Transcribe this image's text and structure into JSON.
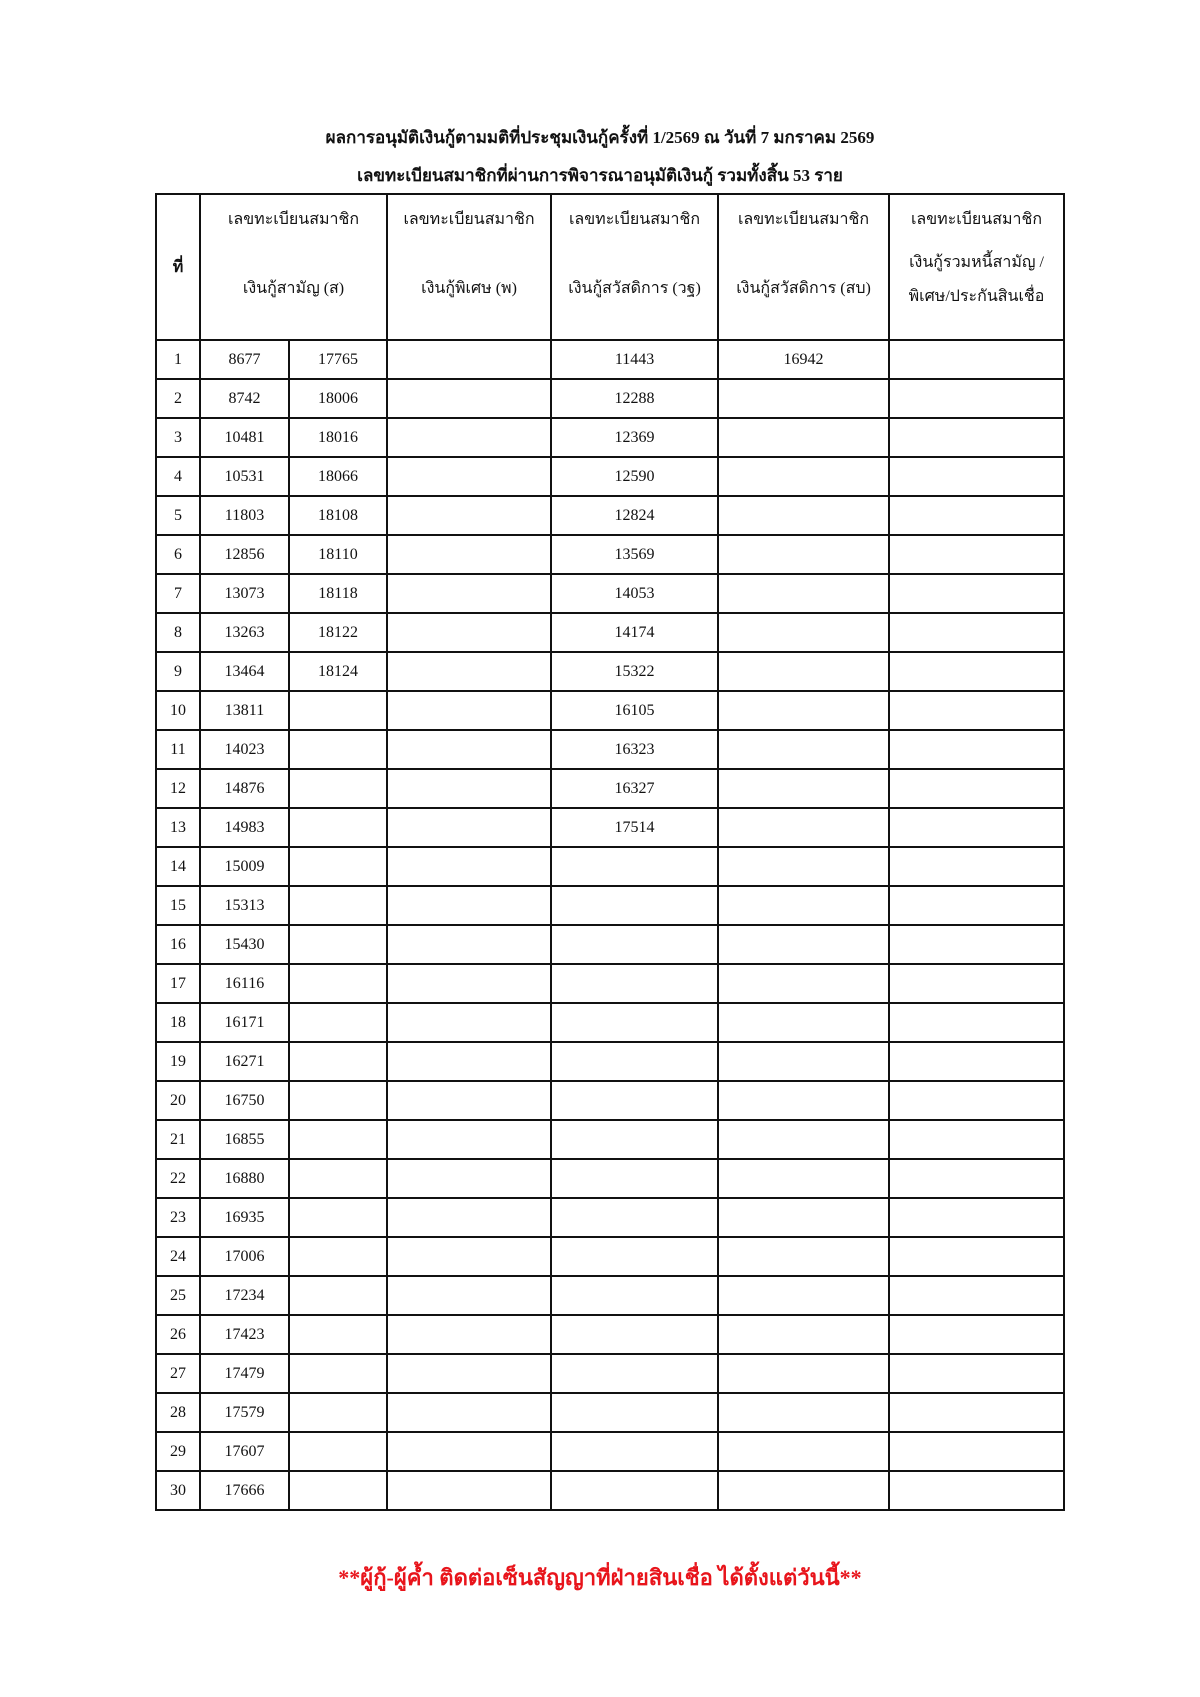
{
  "title": "ผลการอนุมัติเงินกู้ตามมติที่ประชุมเงินกู้ครั้งที่  1/2569   ณ วันที่ 7 มกราคม 2569",
  "subtitle": "เลขทะเบียนสมาชิกที่ผ่านการพิจารณาอนุมัติเงินกู้ รวมทั้งสิ้น 53   ราย",
  "headers": {
    "no": "ที่",
    "col_s": {
      "line1": "เลขทะเบียนสมาชิก",
      "line2": "เงินกู้สามัญ (ส)"
    },
    "col_p": {
      "line1": "เลขทะเบียนสมาชิก",
      "line2": "เงินกู้พิเศษ (พ)"
    },
    "col_wt": {
      "line1": "เลขทะเบียนสมาชิก",
      "line2": "เงินกู้สวัสดิการ (วฐ)"
    },
    "col_sb": {
      "line1": "เลขทะเบียนสมาชิก",
      "line2": "เงินกู้สวัสดิการ (สบ)"
    },
    "col_other": {
      "line1": "เลขทะเบียนสมาชิก",
      "line2": "เงินกู้รวมหนี้สามัญ / พิเศษ/ประกันสินเชื่อ"
    }
  },
  "rows": [
    [
      "1",
      "8677",
      "17765",
      "",
      "11443",
      "16942",
      ""
    ],
    [
      "2",
      "8742",
      "18006",
      "",
      "12288",
      "",
      ""
    ],
    [
      "3",
      "10481",
      "18016",
      "",
      "12369",
      "",
      ""
    ],
    [
      "4",
      "10531",
      "18066",
      "",
      "12590",
      "",
      ""
    ],
    [
      "5",
      "11803",
      "18108",
      "",
      "12824",
      "",
      ""
    ],
    [
      "6",
      "12856",
      "18110",
      "",
      "13569",
      "",
      ""
    ],
    [
      "7",
      "13073",
      "18118",
      "",
      "14053",
      "",
      ""
    ],
    [
      "8",
      "13263",
      "18122",
      "",
      "14174",
      "",
      ""
    ],
    [
      "9",
      "13464",
      "18124",
      "",
      "15322",
      "",
      ""
    ],
    [
      "10",
      "13811",
      "",
      "",
      "16105",
      "",
      ""
    ],
    [
      "11",
      "14023",
      "",
      "",
      "16323",
      "",
      ""
    ],
    [
      "12",
      "14876",
      "",
      "",
      "16327",
      "",
      ""
    ],
    [
      "13",
      "14983",
      "",
      "",
      "17514",
      "",
      ""
    ],
    [
      "14",
      "15009",
      "",
      "",
      "",
      "",
      ""
    ],
    [
      "15",
      "15313",
      "",
      "",
      "",
      "",
      ""
    ],
    [
      "16",
      "15430",
      "",
      "",
      "",
      "",
      ""
    ],
    [
      "17",
      "16116",
      "",
      "",
      "",
      "",
      ""
    ],
    [
      "18",
      "16171",
      "",
      "",
      "",
      "",
      ""
    ],
    [
      "19",
      "16271",
      "",
      "",
      "",
      "",
      ""
    ],
    [
      "20",
      "16750",
      "",
      "",
      "",
      "",
      ""
    ],
    [
      "21",
      "16855",
      "",
      "",
      "",
      "",
      ""
    ],
    [
      "22",
      "16880",
      "",
      "",
      "",
      "",
      ""
    ],
    [
      "23",
      "16935",
      "",
      "",
      "",
      "",
      ""
    ],
    [
      "24",
      "17006",
      "",
      "",
      "",
      "",
      ""
    ],
    [
      "25",
      "17234",
      "",
      "",
      "",
      "",
      ""
    ],
    [
      "26",
      "17423",
      "",
      "",
      "",
      "",
      ""
    ],
    [
      "27",
      "17479",
      "",
      "",
      "",
      "",
      ""
    ],
    [
      "28",
      "17579",
      "",
      "",
      "",
      "",
      ""
    ],
    [
      "29",
      "17607",
      "",
      "",
      "",
      "",
      ""
    ],
    [
      "30",
      "17666",
      "",
      "",
      "",
      "",
      ""
    ]
  ],
  "footer": "**ผู้กู้-ผู้ค้ำ ติดต่อเซ็นสัญญาที่ฝ่ายสินเชื่อ ได้ตั้งแต่วันนี้**",
  "colors": {
    "footer": "#e8141b"
  }
}
